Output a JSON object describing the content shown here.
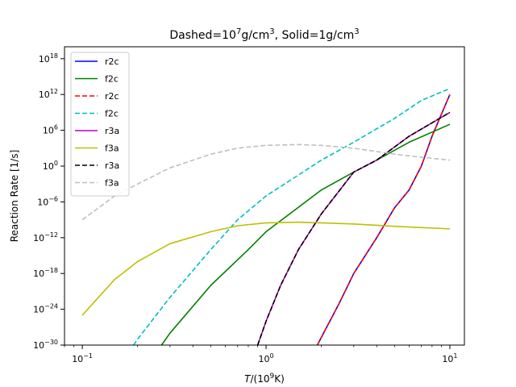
{
  "chart_data": {
    "type": "line",
    "title": {
      "prefix": "Dashed=10",
      "exp1": "7",
      "middle": "g/cm",
      "exp2": "3",
      "sep": ", Solid=1g/cm",
      "exp3": "3"
    },
    "xlabel": {
      "italic": "T",
      "rest": "/(10",
      "exp": "9",
      "end": "K)"
    },
    "ylabel": "Reaction Rate [1/s]",
    "x_scale": "log",
    "y_scale": "log",
    "xlim": [
      0.08,
      12
    ],
    "ylim": [
      1e-30,
      1e+20
    ],
    "x_ticks": [
      {
        "value": 0.1,
        "base": "10",
        "exp": "−1"
      },
      {
        "value": 1,
        "base": "10",
        "exp": "0"
      },
      {
        "value": 10,
        "base": "10",
        "exp": "1"
      }
    ],
    "y_ticks": [
      {
        "value": 1e-30,
        "base": "10",
        "exp": "−30"
      },
      {
        "value": 1e-24,
        "base": "10",
        "exp": "−24"
      },
      {
        "value": 1e-18,
        "base": "10",
        "exp": "−18"
      },
      {
        "value": 1e-12,
        "base": "10",
        "exp": "−12"
      },
      {
        "value": 1e-06,
        "base": "10",
        "exp": "−6"
      },
      {
        "value": 1,
        "base": "10",
        "exp": "0"
      },
      {
        "value": 1000000.0,
        "base": "10",
        "exp": "6"
      },
      {
        "value": 1000000000000.0,
        "base": "10",
        "exp": "12"
      },
      {
        "value": 1e+18,
        "base": "10",
        "exp": "18"
      }
    ],
    "grid": false,
    "legend_position": "top-left",
    "series": [
      {
        "name": "r2c",
        "color": "#0000ff",
        "dash": false,
        "x": [
          1.9,
          2.5,
          3,
          4,
          5,
          6,
          7,
          8,
          10
        ],
        "y": [
          1e-30,
          1e-23,
          1e-18,
          1e-12,
          1e-07,
          0.0001,
          1,
          100000.0,
          1000000000000.0
        ]
      },
      {
        "name": "f2c",
        "color": "#008000",
        "dash": false,
        "x": [
          0.27,
          0.3,
          0.5,
          0.8,
          1,
          2,
          3,
          4,
          6,
          10
        ],
        "y": [
          1e-30,
          1e-28,
          1e-20,
          1e-14,
          1e-11,
          0.0001,
          0.1,
          10,
          10000.0,
          10000000.0
        ]
      },
      {
        "name": "r2c",
        "color": "#ff0000",
        "dash": true,
        "x": [
          1.9,
          2.5,
          3,
          4,
          5,
          6,
          7,
          8,
          10
        ],
        "y": [
          1e-30,
          1e-23,
          1e-18,
          1e-12,
          1e-07,
          0.0001,
          1,
          100000.0,
          1000000000000.0
        ]
      },
      {
        "name": "f2c",
        "color": "#00bfbf",
        "dash": true,
        "x": [
          0.19,
          0.2,
          0.3,
          0.5,
          0.7,
          1,
          2,
          3,
          5,
          7,
          10
        ],
        "y": [
          1e-30,
          1e-29,
          1e-22,
          1e-14,
          1e-09,
          1e-05,
          10,
          10000.0,
          100000000.0,
          100000000000.0,
          10000000000000.0
        ]
      },
      {
        "name": "r3a",
        "color": "#bf00bf",
        "dash": false,
        "x": [
          0.9,
          1,
          1.2,
          1.5,
          2,
          3,
          4,
          6,
          10
        ],
        "y": [
          1e-30,
          1e-26,
          1e-20,
          1e-14,
          1e-08,
          0.1,
          10,
          100000.0,
          1000000000.0
        ]
      },
      {
        "name": "f3a",
        "color": "#bfbf00",
        "dash": false,
        "x": [
          0.1,
          0.15,
          0.2,
          0.3,
          0.5,
          0.7,
          1,
          1.5,
          2,
          3,
          5,
          10
        ],
        "y": [
          1e-25,
          1e-19,
          1e-16,
          1e-13,
          1e-11,
          1e-10,
          3e-10,
          4e-10,
          3e-10,
          2e-10,
          8e-11,
          3e-11
        ]
      },
      {
        "name": "r3a",
        "color": "#000000",
        "dash": true,
        "x": [
          0.9,
          1,
          1.2,
          1.5,
          2,
          3,
          4,
          6,
          10
        ],
        "y": [
          1e-30,
          1e-26,
          1e-20,
          1e-14,
          1e-08,
          0.1,
          10,
          100000.0,
          1000000000.0
        ]
      },
      {
        "name": "f3a",
        "color": "#bfbfbf",
        "dash": true,
        "x": [
          0.1,
          0.15,
          0.2,
          0.3,
          0.5,
          0.7,
          1,
          1.5,
          2,
          3,
          5,
          7,
          10
        ],
        "y": [
          1e-09,
          1e-05,
          0.001,
          0.5,
          100,
          1000,
          3000,
          4000,
          3000,
          1000,
          100,
          30,
          10
        ]
      }
    ]
  }
}
